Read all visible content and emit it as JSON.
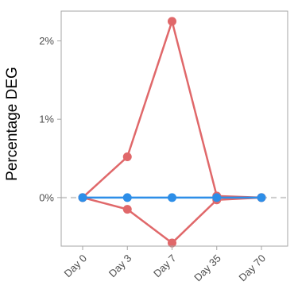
{
  "chart_data": {
    "type": "line",
    "title": "",
    "xlabel": "",
    "ylabel": "Percentage DEG",
    "categories": [
      "Day 0",
      "Day 3",
      "Day 7",
      "Day 35",
      "Day 70"
    ],
    "y_ticks": [
      0,
      1,
      2
    ],
    "y_tick_labels": [
      "0%",
      "1%",
      "2%"
    ],
    "ylim": [
      -0.62,
      2.38
    ],
    "grid": false,
    "legend": "none",
    "reference_line": {
      "y": 0,
      "style": "dashed",
      "color": "#cccccc"
    },
    "series": [
      {
        "color": "#e0686a",
        "values": [
          0,
          0.52,
          2.25,
          0.02,
          0
        ]
      },
      {
        "color": "#e0686a",
        "values": [
          0,
          -0.15,
          -0.58,
          -0.03,
          0
        ]
      },
      {
        "color": "#2d8ee8",
        "values": [
          0,
          0,
          0,
          0,
          0
        ]
      }
    ]
  }
}
